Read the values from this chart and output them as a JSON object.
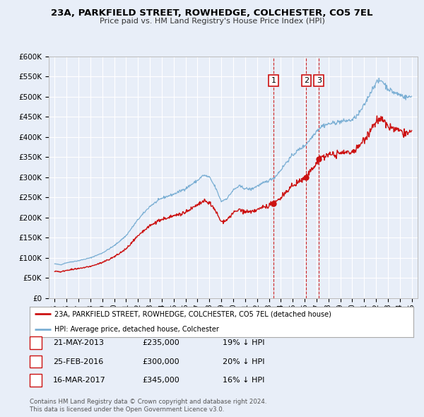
{
  "title": "23A, PARKFIELD STREET, ROWHEDGE, COLCHESTER, CO5 7EL",
  "subtitle": "Price paid vs. HM Land Registry's House Price Index (HPI)",
  "ylim": [
    0,
    600000
  ],
  "yticks": [
    0,
    50000,
    100000,
    150000,
    200000,
    250000,
    300000,
    350000,
    400000,
    450000,
    500000,
    550000,
    600000
  ],
  "ytick_labels": [
    "£0",
    "£50K",
    "£100K",
    "£150K",
    "£200K",
    "£250K",
    "£300K",
    "£350K",
    "£400K",
    "£450K",
    "£500K",
    "£550K",
    "£600K"
  ],
  "xlim_start": 1994.5,
  "xlim_end": 2025.5,
  "background_color": "#e8eef8",
  "plot_bg_color": "#e8eef8",
  "grid_color": "#ffffff",
  "hpi_color": "#7bafd4",
  "price_color": "#cc1111",
  "marker_color": "#cc1111",
  "sale_dates": [
    2013.386,
    2016.146,
    2017.204
  ],
  "sale_prices": [
    235000,
    300000,
    345000
  ],
  "sale_labels": [
    "1",
    "2",
    "3"
  ],
  "legend_label_price": "23A, PARKFIELD STREET, ROWHEDGE, COLCHESTER, CO5 7EL (detached house)",
  "legend_label_hpi": "HPI: Average price, detached house, Colchester",
  "table_rows": [
    {
      "num": "1",
      "date": "21-MAY-2013",
      "price": "£235,000",
      "hpi": "19% ↓ HPI"
    },
    {
      "num": "2",
      "date": "25-FEB-2016",
      "price": "£300,000",
      "hpi": "20% ↓ HPI"
    },
    {
      "num": "3",
      "date": "16-MAR-2017",
      "price": "£345,000",
      "hpi": "16% ↓ HPI"
    }
  ],
  "footnote1": "Contains HM Land Registry data © Crown copyright and database right 2024.",
  "footnote2": "This data is licensed under the Open Government Licence v3.0."
}
